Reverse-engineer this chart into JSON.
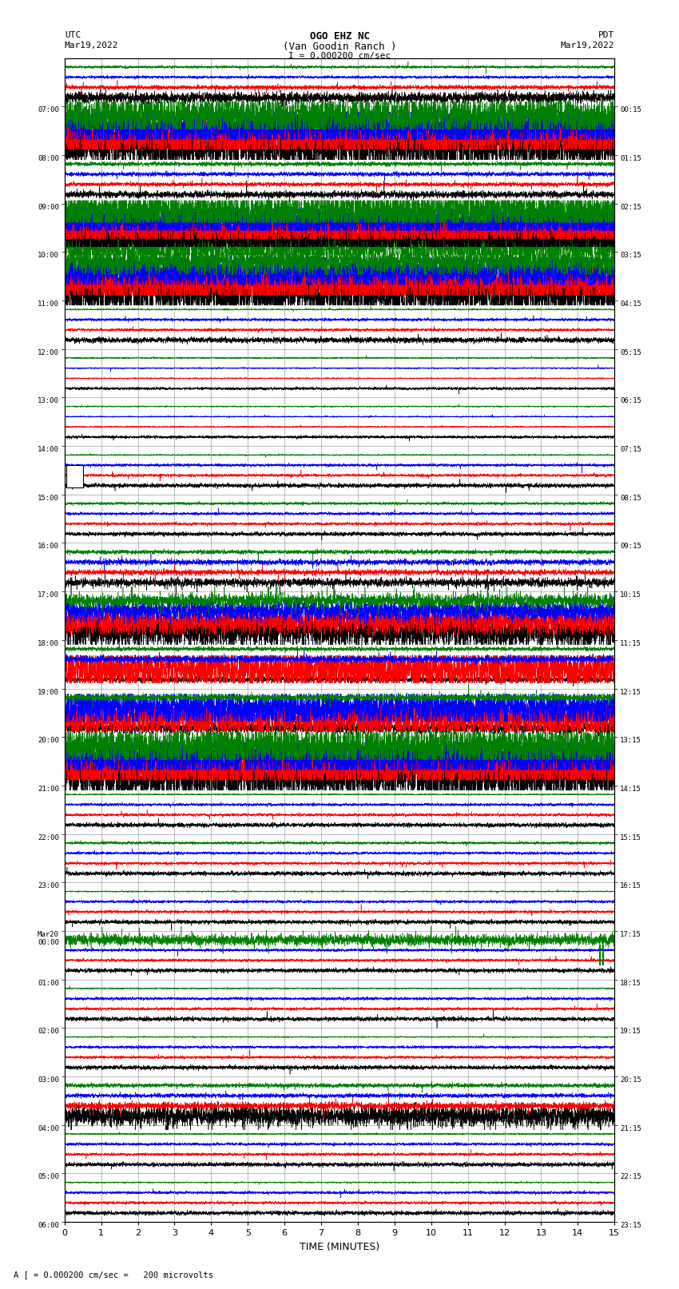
{
  "title_line1": "OGO EHZ NC",
  "title_line2": "(Van Goodin Ranch )",
  "title_line3": "I = 0.000200 cm/sec",
  "left_label_top": "UTC",
  "left_label_date": "Mar19,2022",
  "right_label_top": "PDT",
  "right_label_date": "Mar19,2022",
  "bottom_label": "TIME (MINUTES)",
  "bottom_note": "A [ = 0.000200 cm/sec =   200 microvolts",
  "xlabel_ticks": [
    0,
    1,
    2,
    3,
    4,
    5,
    6,
    7,
    8,
    9,
    10,
    11,
    12,
    13,
    14,
    15
  ],
  "xlim": [
    0,
    15
  ],
  "num_rows": 24,
  "bg_color": "#ffffff",
  "grid_color": "#888888",
  "utc_times": [
    "07:00",
    "08:00",
    "09:00",
    "10:00",
    "11:00",
    "12:00",
    "13:00",
    "14:00",
    "15:00",
    "16:00",
    "17:00",
    "18:00",
    "19:00",
    "20:00",
    "21:00",
    "22:00",
    "23:00",
    "Mar20\n00:00",
    "01:00",
    "02:00",
    "03:00",
    "04:00",
    "05:00",
    "06:00"
  ],
  "pdt_times": [
    "00:15",
    "01:15",
    "02:15",
    "03:15",
    "04:15",
    "05:15",
    "06:15",
    "07:15",
    "08:15",
    "09:15",
    "10:15",
    "11:15",
    "12:15",
    "13:15",
    "14:15",
    "15:15",
    "16:15",
    "17:15",
    "18:15",
    "19:15",
    "20:15",
    "21:15",
    "22:15",
    "23:15"
  ],
  "rows": [
    {
      "traces": [
        {
          "color": "black",
          "amp": 0.08,
          "spike_prob": 0.002
        },
        {
          "color": "red",
          "amp": 0.03,
          "spike_prob": 0.005
        },
        {
          "color": "blue",
          "amp": 0.02,
          "spike_prob": 0.001
        },
        {
          "color": "green",
          "amp": 0.02,
          "spike_prob": 0.001
        }
      ]
    },
    {
      "traces": [
        {
          "color": "black",
          "amp": 0.35,
          "spike_prob": 0.02
        },
        {
          "color": "red",
          "amp": 0.38,
          "spike_prob": 0.02
        },
        {
          "color": "blue",
          "amp": 0.32,
          "spike_prob": 0.02
        },
        {
          "color": "green",
          "amp": 0.3,
          "spike_prob": 0.02
        }
      ]
    },
    {
      "traces": [
        {
          "color": "black",
          "amp": 0.05,
          "spike_prob": 0.003
        },
        {
          "color": "red",
          "amp": 0.03,
          "spike_prob": 0.003
        },
        {
          "color": "blue",
          "amp": 0.03,
          "spike_prob": 0.001
        },
        {
          "color": "green",
          "amp": 0.03,
          "spike_prob": 0.001
        }
      ]
    },
    {
      "traces": [
        {
          "color": "green",
          "amp": 0.32,
          "spike_prob": 0.02
        },
        {
          "color": "black",
          "amp": 0.35,
          "spike_prob": 0.02
        },
        {
          "color": "red",
          "amp": 0.3,
          "spike_prob": 0.02
        },
        {
          "color": "blue",
          "amp": 0.28,
          "spike_prob": 0.02
        },
        {
          "color": "green",
          "amp": 0.32,
          "spike_prob": 0.02
        }
      ]
    },
    {
      "traces": [
        {
          "color": "black",
          "amp": 0.38,
          "spike_prob": 0.02
        },
        {
          "color": "red",
          "amp": 0.4,
          "spike_prob": 0.02
        },
        {
          "color": "blue",
          "amp": 0.25,
          "spike_prob": 0.02
        },
        {
          "color": "green",
          "amp": 0.2,
          "spike_prob": 0.02
        }
      ]
    },
    {
      "traces": [
        {
          "color": "black",
          "amp": 0.04,
          "spike_prob": 0.001
        },
        {
          "color": "red",
          "amp": 0.02,
          "spike_prob": 0.003
        },
        {
          "color": "blue",
          "amp": 0.02,
          "spike_prob": 0.001
        },
        {
          "color": "green",
          "amp": 0.01,
          "spike_prob": 0.001
        }
      ]
    },
    {
      "traces": [
        {
          "color": "black",
          "amp": 0.02,
          "spike_prob": 0.001
        },
        {
          "color": "red",
          "amp": 0.01,
          "spike_prob": 0.001
        },
        {
          "color": "blue",
          "amp": 0.01,
          "spike_prob": 0.001
        },
        {
          "color": "green",
          "amp": 0.01,
          "spike_prob": 0.001
        }
      ]
    },
    {
      "traces": [
        {
          "color": "black",
          "amp": 0.02,
          "spike_prob": 0.001
        },
        {
          "color": "red",
          "amp": 0.01,
          "spike_prob": 0.001
        },
        {
          "color": "blue",
          "amp": 0.01,
          "spike_prob": 0.001
        },
        {
          "color": "green",
          "amp": 0.01,
          "spike_prob": 0.001
        }
      ]
    },
    {
      "traces": [
        {
          "color": "black",
          "amp": 0.03,
          "spike_prob": 0.002
        },
        {
          "color": "red",
          "amp": 0.02,
          "spike_prob": 0.003
        },
        {
          "color": "blue",
          "amp": 0.02,
          "spike_prob": 0.001
        },
        {
          "color": "green",
          "amp": 0.01,
          "spike_prob": 0.001
        }
      ]
    },
    {
      "traces": [
        {
          "color": "black",
          "amp": 0.03,
          "spike_prob": 0.001
        },
        {
          "color": "red",
          "amp": 0.02,
          "spike_prob": 0.002
        },
        {
          "color": "blue",
          "amp": 0.02,
          "spike_prob": 0.001
        },
        {
          "color": "green",
          "amp": 0.02,
          "spike_prob": 0.001
        }
      ]
    },
    {
      "traces": [
        {
          "color": "black",
          "amp": 0.06,
          "spike_prob": 0.005
        },
        {
          "color": "red",
          "amp": 0.04,
          "spike_prob": 0.003
        },
        {
          "color": "blue",
          "amp": 0.04,
          "spike_prob": 0.002
        },
        {
          "color": "green",
          "amp": 0.03,
          "spike_prob": 0.001
        }
      ]
    },
    {
      "traces": [
        {
          "color": "black",
          "amp": 0.25,
          "spike_prob": 0.01
        },
        {
          "color": "red",
          "amp": 0.2,
          "spike_prob": 0.01
        },
        {
          "color": "blue",
          "amp": 0.15,
          "spike_prob": 0.01
        },
        {
          "color": "green",
          "amp": 0.1,
          "spike_prob": 0.01
        }
      ]
    },
    {
      "traces": [
        {
          "color": "black",
          "amp": 0.04,
          "spike_prob": 0.003
        },
        {
          "color": "red",
          "amp": 0.3,
          "spike_prob": 0.02
        },
        {
          "color": "blue",
          "amp": 0.05,
          "spike_prob": 0.002
        },
        {
          "color": "green",
          "amp": 0.03,
          "spike_prob": 0.001
        }
      ]
    },
    {
      "traces": [
        {
          "color": "black",
          "amp": 0.08,
          "spike_prob": 0.003
        },
        {
          "color": "red",
          "amp": 0.3,
          "spike_prob": 0.02
        },
        {
          "color": "blue",
          "amp": 0.25,
          "spike_prob": 0.01
        },
        {
          "color": "green",
          "amp": 0.05,
          "spike_prob": 0.002
        }
      ]
    },
    {
      "traces": [
        {
          "color": "black",
          "amp": 0.35,
          "spike_prob": 0.02
        },
        {
          "color": "red",
          "amp": 0.38,
          "spike_prob": 0.02
        },
        {
          "color": "blue",
          "amp": 0.32,
          "spike_prob": 0.02
        },
        {
          "color": "green",
          "amp": 0.3,
          "spike_prob": 0.02
        }
      ]
    },
    {
      "traces": [
        {
          "color": "black",
          "amp": 0.03,
          "spike_prob": 0.001
        },
        {
          "color": "red",
          "amp": 0.02,
          "spike_prob": 0.002
        },
        {
          "color": "blue",
          "amp": 0.02,
          "spike_prob": 0.001
        },
        {
          "color": "green",
          "amp": 0.01,
          "spike_prob": 0.001
        }
      ]
    },
    {
      "traces": [
        {
          "color": "black",
          "amp": 0.03,
          "spike_prob": 0.002
        },
        {
          "color": "red",
          "amp": 0.02,
          "spike_prob": 0.003
        },
        {
          "color": "blue",
          "amp": 0.02,
          "spike_prob": 0.001
        },
        {
          "color": "green",
          "amp": 0.02,
          "spike_prob": 0.001
        }
      ]
    },
    {
      "traces": [
        {
          "color": "black",
          "amp": 0.03,
          "spike_prob": 0.001
        },
        {
          "color": "red",
          "amp": 0.02,
          "spike_prob": 0.002
        },
        {
          "color": "blue",
          "amp": 0.02,
          "spike_prob": 0.001
        },
        {
          "color": "green",
          "amp": 0.01,
          "spike_prob": 0.001
        }
      ]
    },
    {
      "traces": [
        {
          "color": "black",
          "amp": 0.03,
          "spike_prob": 0.001
        },
        {
          "color": "red",
          "amp": 0.02,
          "spike_prob": 0.002
        },
        {
          "color": "blue",
          "amp": 0.02,
          "spike_prob": 0.001
        },
        {
          "color": "green",
          "amp": 0.08,
          "spike_prob": 0.005
        }
      ]
    },
    {
      "traces": [
        {
          "color": "black",
          "amp": 0.03,
          "spike_prob": 0.001
        },
        {
          "color": "red",
          "amp": 0.02,
          "spike_prob": 0.002
        },
        {
          "color": "blue",
          "amp": 0.02,
          "spike_prob": 0.001
        },
        {
          "color": "green",
          "amp": 0.01,
          "spike_prob": 0.001
        }
      ]
    },
    {
      "traces": [
        {
          "color": "black",
          "amp": 0.03,
          "spike_prob": 0.001
        },
        {
          "color": "red",
          "amp": 0.02,
          "spike_prob": 0.002
        },
        {
          "color": "blue",
          "amp": 0.02,
          "spike_prob": 0.001
        },
        {
          "color": "green",
          "amp": 0.01,
          "spike_prob": 0.001
        }
      ]
    },
    {
      "traces": [
        {
          "color": "black",
          "amp": 0.15,
          "spike_prob": 0.01
        },
        {
          "color": "red",
          "amp": 0.05,
          "spike_prob": 0.003
        },
        {
          "color": "blue",
          "amp": 0.03,
          "spike_prob": 0.001
        },
        {
          "color": "green",
          "amp": 0.03,
          "spike_prob": 0.001
        }
      ]
    },
    {
      "traces": [
        {
          "color": "black",
          "amp": 0.03,
          "spike_prob": 0.001
        },
        {
          "color": "red",
          "amp": 0.02,
          "spike_prob": 0.001
        },
        {
          "color": "blue",
          "amp": 0.02,
          "spike_prob": 0.001
        },
        {
          "color": "green",
          "amp": 0.01,
          "spike_prob": 0.001
        }
      ]
    },
    {
      "traces": [
        {
          "color": "black",
          "amp": 0.03,
          "spike_prob": 0.001
        },
        {
          "color": "red",
          "amp": 0.02,
          "spike_prob": 0.001
        },
        {
          "color": "blue",
          "amp": 0.02,
          "spike_prob": 0.001
        },
        {
          "color": "green",
          "amp": 0.01,
          "spike_prob": 0.001
        }
      ]
    }
  ]
}
